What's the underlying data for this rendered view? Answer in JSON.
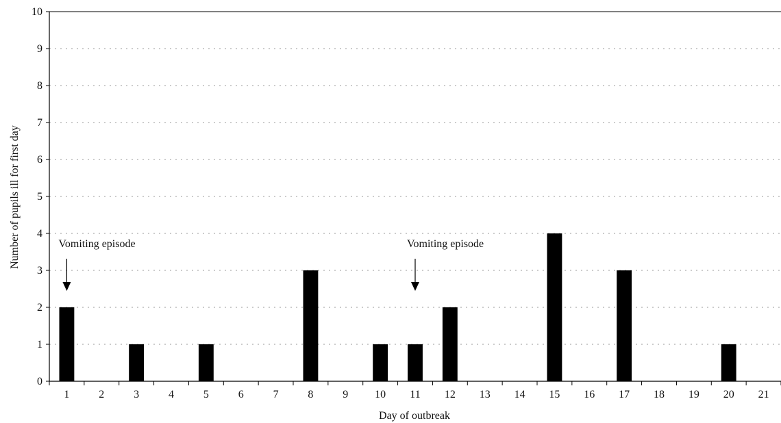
{
  "chart_data": {
    "type": "bar",
    "title": "",
    "xlabel": "Day of outbreak",
    "ylabel": "Number of pupils ill for first day",
    "categories": [
      "1",
      "2",
      "3",
      "4",
      "5",
      "6",
      "7",
      "8",
      "9",
      "10",
      "11",
      "12",
      "13",
      "14",
      "15",
      "16",
      "17",
      "18",
      "19",
      "20",
      "21"
    ],
    "values": [
      2,
      0,
      1,
      0,
      1,
      0,
      0,
      3,
      0,
      1,
      1,
      2,
      0,
      0,
      4,
      0,
      3,
      0,
      0,
      1,
      0
    ],
    "ylim": [
      0,
      10
    ],
    "yticks": [
      "0",
      "1",
      "2",
      "3",
      "4",
      "5",
      "6",
      "7",
      "8",
      "9",
      "10"
    ],
    "grid": true,
    "bar_color": "#000000",
    "annotations": [
      {
        "text": "Vomiting episode",
        "category": "1"
      },
      {
        "text": "Vomiting episode",
        "category": "11"
      }
    ]
  }
}
